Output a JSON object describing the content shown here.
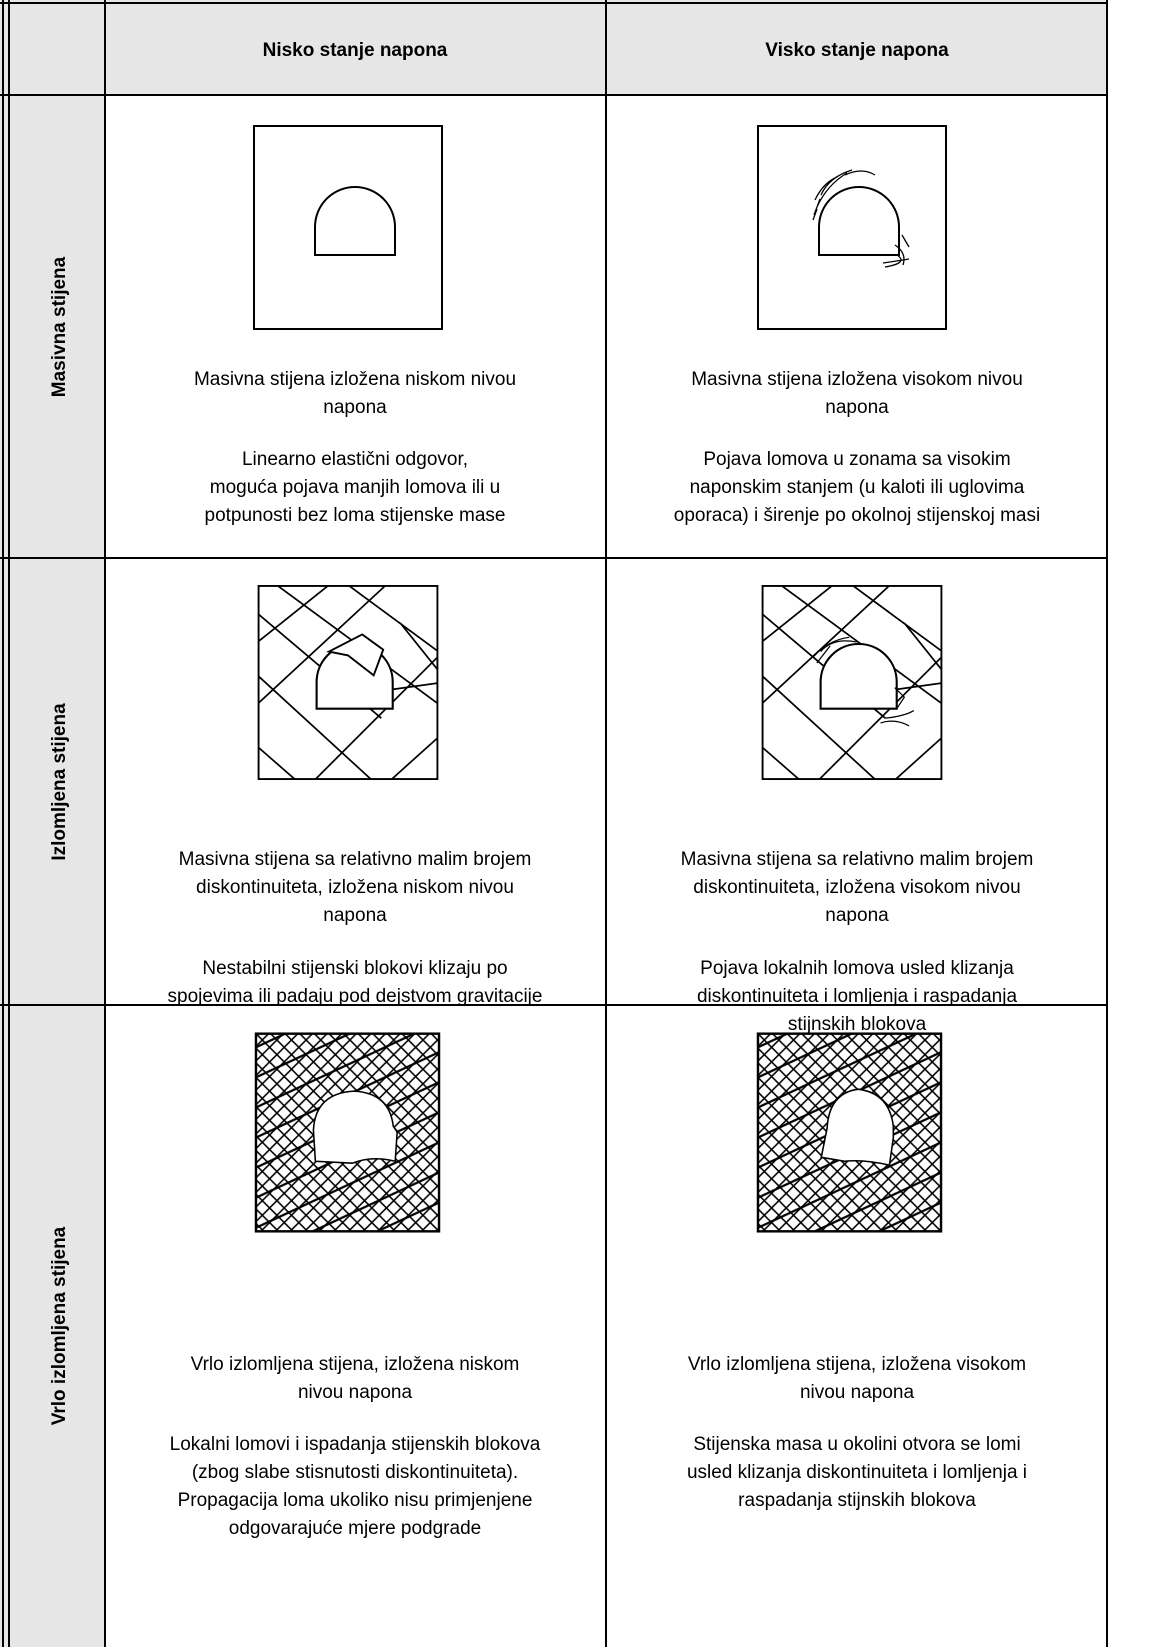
{
  "table": {
    "header": [
      "Nisko stanje napona",
      "Visko stanje napona"
    ],
    "rows": [
      {
        "label": "Masivna stijena",
        "cells": [
          {
            "caption": [
              "Masivna stijena izložena niskom nivou",
              "napona"
            ],
            "description": [
              "Linearno elastični odgovor,",
              "moguća pojava manjih lomova ili u",
              "potpunosti bez loma stijenske mase"
            ]
          },
          {
            "caption": [
              "Masivna stijena izložena visokom nivou",
              "napona"
            ],
            "description": [
              "Pojava lomova u zonama sa visokim",
              "naponskim stanjem (u kaloti ili uglovima",
              "oporaca) i širenje po okolnoj stijenskoj masi"
            ]
          }
        ]
      },
      {
        "label": "Izlomljena stijena",
        "cells": [
          {
            "caption": [
              "Masivna stijena sa relativno malim brojem",
              "diskontinuiteta, izložena niskom nivou",
              "napona"
            ],
            "description": [
              "Nestabilni stijenski blokovi klizaju po",
              "spojevima ili padaju pod dejstvom gravitacije"
            ]
          },
          {
            "caption": [
              "Masivna stijena sa relativno malim brojem",
              "diskontinuiteta, izložena visokom nivou",
              "napona"
            ],
            "description": [
              "Pojava lokalnih lomova usled klizanja",
              "diskontinuiteta i lomljenja i raspadanja",
              "stijnskih blokova"
            ]
          }
        ]
      },
      {
        "label": "Vrlo izlomljena stijena",
        "cells": [
          {
            "caption": [
              "Vrlo izlomljena stijena, izložena niskom",
              "nivou napona"
            ],
            "description": [
              "Lokalni lomovi i ispadanja stijenskih blokova",
              "(zbog slabe stisnutosti diskontinuiteta).",
              "Propagacija loma ukoliko nisu primjenjene",
              "odgovarajuće mjere podgrade"
            ]
          },
          {
            "caption": [
              "Vrlo izlomljena stijena, izložena visokom",
              "nivou napona"
            ],
            "description": [
              "Stijenska masa u okolini otvora se lomi",
              "usled klizanja diskontinuiteta i lomljenja i",
              "raspadanja stijnskih blokova"
            ]
          }
        ]
      }
    ]
  }
}
